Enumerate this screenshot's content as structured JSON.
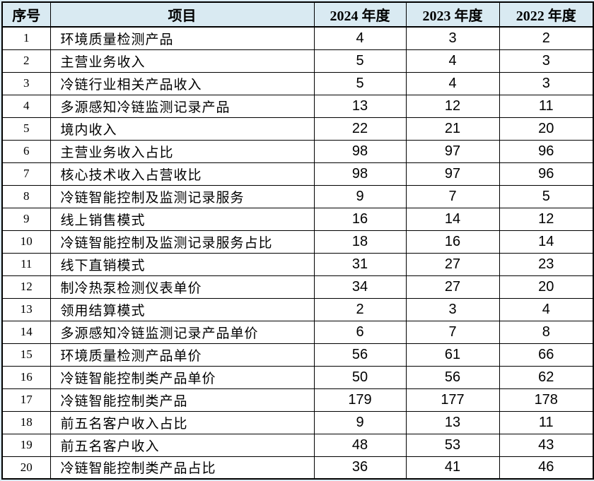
{
  "table": {
    "headers": [
      "序号",
      "项目",
      "2024 年度",
      "2023 年度",
      "2022 年度"
    ],
    "rows": [
      {
        "no": "1",
        "item": "环境质量检测产品",
        "y2024": "4",
        "y2023": "3",
        "y2022": "2"
      },
      {
        "no": "2",
        "item": "主营业务收入",
        "y2024": "5",
        "y2023": "4",
        "y2022": "3"
      },
      {
        "no": "3",
        "item": "冷链行业相关产品收入",
        "y2024": "5",
        "y2023": "4",
        "y2022": "3"
      },
      {
        "no": "4",
        "item": "多源感知冷链监测记录产品",
        "y2024": "13",
        "y2023": "12",
        "y2022": "11"
      },
      {
        "no": "5",
        "item": "境内收入",
        "y2024": "22",
        "y2023": "21",
        "y2022": "20"
      },
      {
        "no": "6",
        "item": "主营业务收入占比",
        "y2024": "98",
        "y2023": "97",
        "y2022": "96"
      },
      {
        "no": "7",
        "item": "核心技术收入占营收比",
        "y2024": "98",
        "y2023": "97",
        "y2022": "96"
      },
      {
        "no": "8",
        "item": "冷链智能控制及监测记录服务",
        "y2024": "9",
        "y2023": "7",
        "y2022": "5"
      },
      {
        "no": "9",
        "item": "线上销售模式",
        "y2024": "16",
        "y2023": "14",
        "y2022": "12"
      },
      {
        "no": "10",
        "item": "冷链智能控制及监测记录服务占比",
        "y2024": "18",
        "y2023": "16",
        "y2022": "14"
      },
      {
        "no": "11",
        "item": "线下直销模式",
        "y2024": "31",
        "y2023": "27",
        "y2022": "23"
      },
      {
        "no": "12",
        "item": "制冷热泵检测仪表单价",
        "y2024": "34",
        "y2023": "27",
        "y2022": "20"
      },
      {
        "no": "13",
        "item": "领用结算模式",
        "y2024": "2",
        "y2023": "3",
        "y2022": "4"
      },
      {
        "no": "14",
        "item": "多源感知冷链监测记录产品单价",
        "y2024": "6",
        "y2023": "7",
        "y2022": "8"
      },
      {
        "no": "15",
        "item": "环境质量检测产品单价",
        "y2024": "56",
        "y2023": "61",
        "y2022": "66"
      },
      {
        "no": "16",
        "item": "冷链智能控制类产品单价",
        "y2024": "50",
        "y2023": "56",
        "y2022": "62"
      },
      {
        "no": "17",
        "item": "冷链智能控制类产品",
        "y2024": "179",
        "y2023": "177",
        "y2022": "178"
      },
      {
        "no": "18",
        "item": "前五名客户收入占比",
        "y2024": "9",
        "y2023": "13",
        "y2022": "11"
      },
      {
        "no": "19",
        "item": "前五名客户收入",
        "y2024": "48",
        "y2023": "53",
        "y2022": "43"
      },
      {
        "no": "20",
        "item": "冷链智能控制类产品占比",
        "y2024": "36",
        "y2023": "41",
        "y2022": "46"
      }
    ]
  },
  "colors": {
    "header_bg": "#d9eaf2",
    "page_bg": "#d9eaf2",
    "cell_bg": "#ffffff",
    "border": "#000000",
    "text": "#000000"
  }
}
